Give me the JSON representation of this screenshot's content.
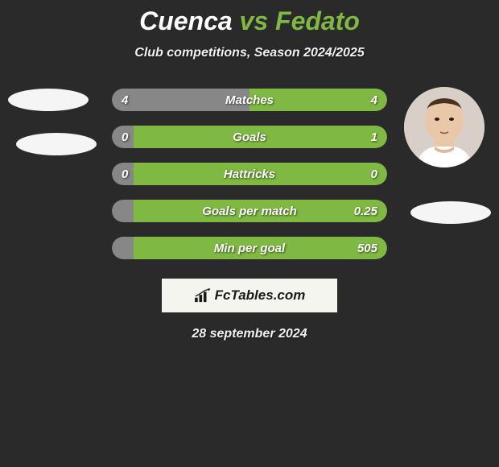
{
  "title": {
    "player1": "Cuenca",
    "vs": " vs ",
    "player2": "Fedato",
    "player1_color": "#ffffff",
    "player2_color": "#7fb842"
  },
  "subtitle": "Club competitions, Season 2024/2025",
  "date": "28 september 2024",
  "brand": "FcTables.com",
  "colors": {
    "background": "#2a2a2a",
    "bar_left": "#878787",
    "bar_right": "#7fb842",
    "bar_left_dominant": "#878787",
    "text": "#ffffff",
    "avatar_skin": "#e8c8a8",
    "avatar_hair": "#3a2818"
  },
  "stats": [
    {
      "label": "Matches",
      "left_value": "4",
      "right_value": "4",
      "left_pct": 50,
      "right_pct": 50
    },
    {
      "label": "Goals",
      "left_value": "0",
      "right_value": "1",
      "left_pct": 8,
      "right_pct": 92
    },
    {
      "label": "Hattricks",
      "left_value": "0",
      "right_value": "0",
      "left_pct": 8,
      "right_pct": 92
    },
    {
      "label": "Goals per match",
      "left_value": "",
      "right_value": "0.25",
      "left_pct": 8,
      "right_pct": 92
    },
    {
      "label": "Min per goal",
      "left_value": "",
      "right_value": "505",
      "left_pct": 8,
      "right_pct": 92
    }
  ]
}
